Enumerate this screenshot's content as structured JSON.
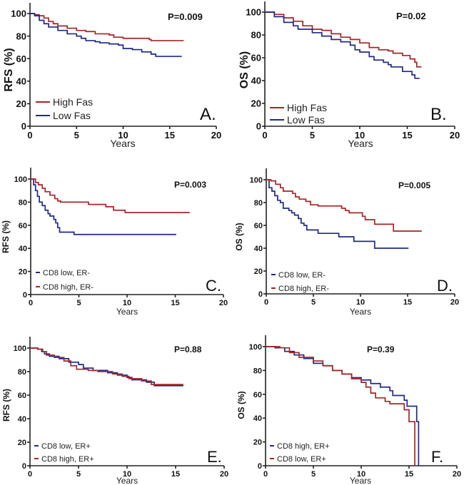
{
  "colors": {
    "red": "#a82424",
    "blue": "#1f2a86",
    "axis": "#222222"
  },
  "chart_data": [
    {
      "type": "line",
      "panel_label": "A.",
      "p_value": "P=0.009",
      "xlabel": "Years",
      "ylabel": "RFS (%)",
      "xlim": [
        0,
        20
      ],
      "ylim": [
        0,
        110
      ],
      "xticks": [
        "0",
        "5",
        "10",
        "15",
        "20"
      ],
      "yticks": [
        "0",
        "20",
        "40",
        "60",
        "80",
        "100"
      ],
      "legend": "bottom-left",
      "grid": false,
      "series": [
        {
          "name": "High Fas",
          "color": "red",
          "points": [
            [
              0,
              100
            ],
            [
              0.5,
              99
            ],
            [
              1,
              98
            ],
            [
              1.5,
              96
            ],
            [
              2,
              93
            ],
            [
              2.5,
              91
            ],
            [
              3,
              89
            ],
            [
              4,
              87
            ],
            [
              5,
              85
            ],
            [
              6,
              84
            ],
            [
              7,
              82
            ],
            [
              8.5,
              81
            ],
            [
              9,
              79
            ],
            [
              10,
              78
            ],
            [
              12.8,
              77
            ],
            [
              13,
              76
            ],
            [
              16.5,
              76
            ]
          ]
        },
        {
          "name": "Low Fas",
          "color": "blue",
          "points": [
            [
              0,
              100
            ],
            [
              0.5,
              98
            ],
            [
              1,
              94
            ],
            [
              1.5,
              91
            ],
            [
              2,
              88
            ],
            [
              3,
              85
            ],
            [
              4,
              82
            ],
            [
              5,
              80
            ],
            [
              5.5,
              78
            ],
            [
              6,
              76
            ],
            [
              7,
              75
            ],
            [
              7.5,
              74
            ],
            [
              8.5,
              73
            ],
            [
              9.5,
              72
            ],
            [
              10,
              69
            ],
            [
              11,
              68
            ],
            [
              12,
              66
            ],
            [
              13,
              64
            ],
            [
              13.5,
              62
            ],
            [
              16.3,
              62
            ]
          ]
        }
      ]
    },
    {
      "type": "line",
      "panel_label": "B.",
      "p_value": "P=0.02",
      "xlabel": "Years",
      "ylabel": "OS (%)",
      "xlim": [
        0,
        20
      ],
      "ylim": [
        0,
        110
      ],
      "xticks": [
        "0",
        "5",
        "10",
        "15",
        "20"
      ],
      "yticks": [
        "0",
        "20",
        "40",
        "60",
        "80",
        "100"
      ],
      "legend": "bottom-left",
      "grid": false,
      "series": [
        {
          "name": "High Fas",
          "color": "red",
          "points": [
            [
              0,
              100
            ],
            [
              1,
              98
            ],
            [
              2,
              95
            ],
            [
              3,
              92
            ],
            [
              4,
              88
            ],
            [
              5,
              85
            ],
            [
              6,
              84
            ],
            [
              7,
              81
            ],
            [
              8,
              78
            ],
            [
              9,
              76
            ],
            [
              10,
              73
            ],
            [
              11,
              69
            ],
            [
              12,
              67
            ],
            [
              13,
              66
            ],
            [
              13.5,
              64
            ],
            [
              14.5,
              62
            ],
            [
              15.3,
              59
            ],
            [
              15.8,
              56
            ],
            [
              16,
              52
            ],
            [
              16.5,
              52
            ]
          ]
        },
        {
          "name": "Low Fas",
          "color": "blue",
          "points": [
            [
              0,
              100
            ],
            [
              1,
              96
            ],
            [
              2,
              91
            ],
            [
              3,
              88
            ],
            [
              3.5,
              85
            ],
            [
              5,
              82
            ],
            [
              6,
              79
            ],
            [
              7,
              76
            ],
            [
              8,
              74
            ],
            [
              9,
              71
            ],
            [
              9.5,
              67
            ],
            [
              10,
              65
            ],
            [
              11,
              61
            ],
            [
              11.5,
              58
            ],
            [
              12.5,
              56
            ],
            [
              13,
              54
            ],
            [
              13.3,
              52
            ],
            [
              14.5,
              48
            ],
            [
              15.5,
              45
            ],
            [
              15.8,
              42
            ],
            [
              16.3,
              42
            ]
          ]
        }
      ]
    },
    {
      "type": "line",
      "panel_label": "C.",
      "p_value": "P=0.003",
      "xlabel": "Years",
      "ylabel": "RFS (%)",
      "xlim": [
        0,
        20
      ],
      "ylim": [
        0,
        110
      ],
      "xticks": [
        "0",
        "5",
        "10",
        "15",
        "20"
      ],
      "yticks": [
        "0",
        "20",
        "40",
        "60",
        "80",
        "100"
      ],
      "legend": "bottom-left",
      "grid": false,
      "series": [
        {
          "name": "CD8 low, ER-",
          "color": "blue",
          "points": [
            [
              0,
              100
            ],
            [
              0.3,
              95
            ],
            [
              0.5,
              90
            ],
            [
              0.7,
              85
            ],
            [
              0.9,
              80
            ],
            [
              1.2,
              77
            ],
            [
              1.5,
              73
            ],
            [
              1.8,
              70
            ],
            [
              2,
              68
            ],
            [
              2.4,
              65
            ],
            [
              2.6,
              62
            ],
            [
              2.8,
              58
            ],
            [
              3,
              54
            ],
            [
              4.5,
              52
            ],
            [
              15.1,
              52
            ]
          ]
        },
        {
          "name": "CD8 high, ER-",
          "color": "red",
          "points": [
            [
              0,
              100
            ],
            [
              0.5,
              97
            ],
            [
              0.8,
              95
            ],
            [
              1.2,
              92
            ],
            [
              1.5,
              89
            ],
            [
              2,
              86
            ],
            [
              2.5,
              83
            ],
            [
              2.8,
              81
            ],
            [
              3.1,
              80
            ],
            [
              6,
              78
            ],
            [
              7.8,
              76
            ],
            [
              8.6,
              73
            ],
            [
              9.8,
              71
            ],
            [
              16.5,
              71
            ]
          ]
        }
      ]
    },
    {
      "type": "line",
      "panel_label": "D.",
      "p_value": "P=0.005",
      "xlabel": "Years",
      "ylabel": "OS (%)",
      "xlim": [
        0,
        20
      ],
      "ylim": [
        0,
        110
      ],
      "xticks": [
        "0",
        "5",
        "10",
        "15",
        "20"
      ],
      "yticks": [
        "0",
        "20",
        "40",
        "60",
        "80",
        "100"
      ],
      "legend": "bottom-left",
      "grid": false,
      "series": [
        {
          "name": "CD8 low, ER-",
          "color": "blue",
          "points": [
            [
              0,
              100
            ],
            [
              0.3,
              93
            ],
            [
              0.6,
              90
            ],
            [
              0.9,
              86
            ],
            [
              1.2,
              82
            ],
            [
              1.5,
              80
            ],
            [
              1.8,
              75
            ],
            [
              2.4,
              73
            ],
            [
              2.7,
              71
            ],
            [
              3,
              69
            ],
            [
              3.4,
              66
            ],
            [
              3.7,
              62
            ],
            [
              4,
              60
            ],
            [
              4.3,
              56
            ],
            [
              5.5,
              53
            ],
            [
              7.7,
              50
            ],
            [
              9.3,
              46
            ],
            [
              11.5,
              40
            ],
            [
              15.1,
              40
            ]
          ]
        },
        {
          "name": "CD8 high, ER-",
          "color": "red",
          "points": [
            [
              0,
              100
            ],
            [
              0.5,
              99
            ],
            [
              1,
              96
            ],
            [
              1.5,
              93
            ],
            [
              1.8,
              90
            ],
            [
              2.8,
              88
            ],
            [
              3.1,
              85
            ],
            [
              3.5,
              83
            ],
            [
              4.2,
              81
            ],
            [
              4.7,
              78
            ],
            [
              5.5,
              77
            ],
            [
              8,
              75
            ],
            [
              8.4,
              73
            ],
            [
              8.8,
              71
            ],
            [
              10.2,
              68
            ],
            [
              10.5,
              65
            ],
            [
              11.5,
              61
            ],
            [
              13.5,
              55
            ],
            [
              16.5,
              55
            ]
          ]
        }
      ]
    },
    {
      "type": "line",
      "panel_label": "E.",
      "p_value": "P=0.88",
      "xlabel": "Years",
      "ylabel": "RFS (%)",
      "xlim": [
        0,
        20
      ],
      "ylim": [
        0,
        110
      ],
      "xticks": [
        "0",
        "5",
        "10",
        "15",
        "20"
      ],
      "yticks": [
        "0",
        "20",
        "40",
        "60",
        "80",
        "100"
      ],
      "legend": "bottom-left",
      "grid": false,
      "series": [
        {
          "name": "CD8 low, ER+",
          "color": "blue",
          "points": [
            [
              0,
              100
            ],
            [
              0.8,
              99
            ],
            [
              1.2,
              97
            ],
            [
              1.5,
              95
            ],
            [
              2,
              93
            ],
            [
              3,
              91
            ],
            [
              4,
              88
            ],
            [
              5,
              86
            ],
            [
              5.5,
              83
            ],
            [
              6.5,
              81
            ],
            [
              8,
              79
            ],
            [
              9,
              77
            ],
            [
              10,
              75
            ],
            [
              10.5,
              73
            ],
            [
              12,
              71
            ],
            [
              12.8,
              68
            ],
            [
              15.8,
              68
            ]
          ]
        },
        {
          "name": "CD8 high, ER+",
          "color": "red",
          "points": [
            [
              0,
              100
            ],
            [
              0.8,
              99
            ],
            [
              1.3,
              97
            ],
            [
              1.7,
              94
            ],
            [
              2.5,
              92
            ],
            [
              3.5,
              89
            ],
            [
              4.2,
              85
            ],
            [
              4.8,
              82
            ],
            [
              6,
              81
            ],
            [
              7,
              80
            ],
            [
              8.5,
              78
            ],
            [
              9.5,
              76
            ],
            [
              10.2,
              74
            ],
            [
              11.5,
              72
            ],
            [
              12.5,
              69
            ],
            [
              15.8,
              69
            ]
          ]
        }
      ]
    },
    {
      "type": "line",
      "panel_label": "F.",
      "p_value": "P=0.39",
      "xlabel": "Years",
      "ylabel": "OS (%)",
      "xlim": [
        0,
        20
      ],
      "ylim": [
        0,
        110
      ],
      "xticks": [
        "0",
        "5",
        "10",
        "15",
        "20"
      ],
      "yticks": [
        "0",
        "20",
        "40",
        "60",
        "80",
        "100"
      ],
      "legend": "bottom-left",
      "grid": false,
      "series": [
        {
          "name": "CD8 high, ER+",
          "color": "blue",
          "points": [
            [
              0,
              100
            ],
            [
              1,
              99
            ],
            [
              2,
              96
            ],
            [
              3,
              93
            ],
            [
              4,
              90
            ],
            [
              5,
              86
            ],
            [
              6,
              84
            ],
            [
              7,
              80
            ],
            [
              8,
              77
            ],
            [
              9,
              74
            ],
            [
              10,
              72
            ],
            [
              11,
              69
            ],
            [
              12,
              66
            ],
            [
              13,
              63
            ],
            [
              13.3,
              59
            ],
            [
              14.5,
              55
            ],
            [
              14.8,
              50
            ],
            [
              15.8,
              37
            ],
            [
              16,
              0
            ]
          ]
        },
        {
          "name": "CD8 low, ER+",
          "color": "red",
          "points": [
            [
              0,
              100
            ],
            [
              1.5,
              99
            ],
            [
              2.5,
              95
            ],
            [
              3.5,
              91
            ],
            [
              5,
              88
            ],
            [
              6,
              84
            ],
            [
              7,
              80
            ],
            [
              8,
              77
            ],
            [
              9,
              73
            ],
            [
              10,
              70
            ],
            [
              10.5,
              66
            ],
            [
              11,
              61
            ],
            [
              11.5,
              57
            ],
            [
              12.5,
              54
            ],
            [
              13,
              52
            ],
            [
              14.5,
              47
            ],
            [
              15,
              37
            ],
            [
              15.6,
              0
            ]
          ]
        }
      ]
    }
  ]
}
